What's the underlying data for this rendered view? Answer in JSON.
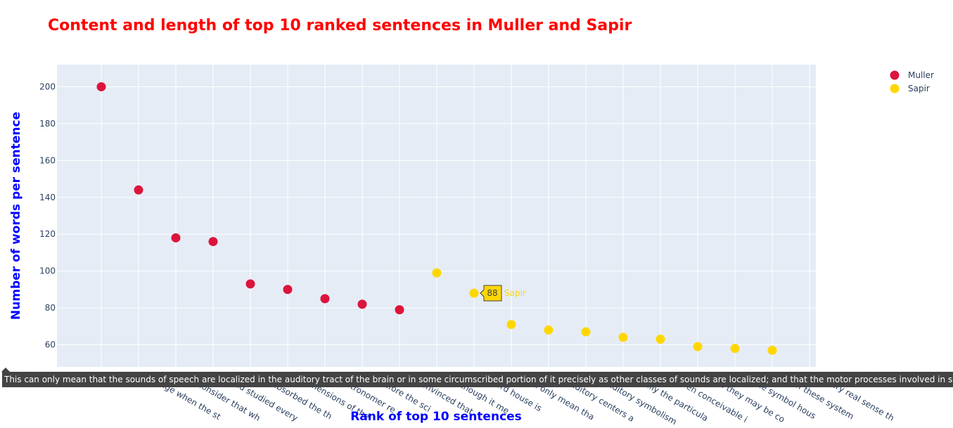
{
  "chart_data": {
    "type": "scatter",
    "title": "Content and length of top 10 ranked sentences in Muller and Sapir",
    "xlabel": "Rank of top 10 sentences",
    "ylabel": "Number of words per sentence",
    "ylim": [
      48,
      212
    ],
    "yticks": [
      60,
      80,
      100,
      120,
      140,
      160,
      180,
      200
    ],
    "grid": true,
    "legend_position": "top-right",
    "colors": {
      "title": "#ff0000",
      "axis_title": "#0000ff",
      "plot_bg": "#e5ecf6",
      "grid": "#ffffff"
    },
    "x_tick_labels": [
      "",
      "age when the st",
      "consider that wh",
      "ad studied every",
      "absorbed the th",
      "mensions of the",
      "stronomer re",
      "efore the sci",
      "onvinced that",
      "lthough it me",
      "ord house is",
      "n only mean tha",
      "uditory centers a",
      "uditory symbolism",
      "ally the particula",
      "ven conceivable i",
      "n they may be co",
      "he symbol hous",
      "of these system",
      "ery real sense th"
    ],
    "series": [
      {
        "name": "Muller",
        "color": "#dc143c",
        "x_index": [
          0,
          1,
          2,
          3,
          4,
          5,
          6,
          7,
          8
        ],
        "values": [
          200,
          144,
          118,
          116,
          93,
          90,
          85,
          82,
          79
        ]
      },
      {
        "name": "Sapir",
        "color": "#ffd700",
        "x_index": [
          9,
          10,
          11,
          12,
          13,
          14,
          15,
          16,
          17,
          18
        ],
        "values": [
          99,
          88,
          71,
          68,
          67,
          64,
          63,
          59,
          58,
          57
        ]
      }
    ],
    "hover": {
      "series": "Sapir",
      "x_index": 10,
      "value_label": "88",
      "name_label": "Sapir",
      "x_hover_text": "This can only mean that the sounds of speech are localized in the auditory tract of the brain or in some circumscribed portion of it precisely as other classes of sounds are localized; and that the motor processes involved in speech (su"
    }
  }
}
